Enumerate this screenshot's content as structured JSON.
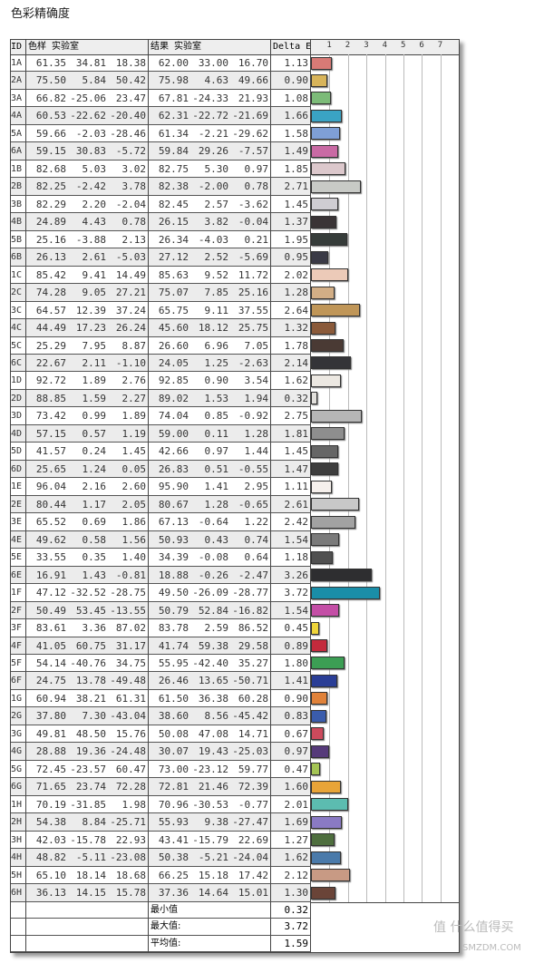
{
  "title": "色彩精确度",
  "header": {
    "id": "ID",
    "sample": "色样 实验室",
    "result": "结果 实验室",
    "delta": "Delta E",
    "ticks": [
      "1",
      "2",
      "3",
      "4",
      "5",
      "6",
      "7"
    ]
  },
  "rows": [
    [
      "1A",
      "61.35",
      "34.81",
      "18.38",
      "62.00",
      "33.00",
      "16.70",
      "1.13",
      "#d87a76"
    ],
    [
      "2A",
      "75.50",
      "5.84",
      "50.42",
      "75.98",
      "4.63",
      "49.66",
      "0.90",
      "#d8b45a"
    ],
    [
      "3A",
      "66.82",
      "-25.06",
      "23.47",
      "67.81",
      "-24.33",
      "21.93",
      "1.08",
      "#7cbb78"
    ],
    [
      "4A",
      "60.53",
      "-22.62",
      "-20.40",
      "62.31",
      "-22.72",
      "-21.69",
      "1.66",
      "#3aa3c4"
    ],
    [
      "5A",
      "59.66",
      "-2.03",
      "-28.46",
      "61.34",
      "-2.21",
      "-29.62",
      "1.58",
      "#7f9fd6"
    ],
    [
      "6A",
      "59.15",
      "30.83",
      "-5.72",
      "59.84",
      "29.26",
      "-7.57",
      "1.49",
      "#c96aa4"
    ],
    [
      "1B",
      "82.68",
      "5.03",
      "3.02",
      "82.75",
      "5.30",
      "0.97",
      "1.85",
      "#dcc8cc"
    ],
    [
      "2B",
      "82.25",
      "-2.42",
      "3.78",
      "82.38",
      "-2.00",
      "0.78",
      "2.71",
      "#c8cac6"
    ],
    [
      "3B",
      "82.29",
      "2.20",
      "-2.04",
      "82.45",
      "2.57",
      "-3.62",
      "1.45",
      "#cfcdd2"
    ],
    [
      "4B",
      "24.89",
      "4.43",
      "0.78",
      "26.15",
      "3.82",
      "-0.04",
      "1.37",
      "#3a3436"
    ],
    [
      "5B",
      "25.16",
      "-3.88",
      "2.13",
      "26.34",
      "-4.03",
      "0.21",
      "1.95",
      "#363c3a"
    ],
    [
      "6B",
      "26.13",
      "2.61",
      "-5.03",
      "27.12",
      "2.52",
      "-5.69",
      "0.95",
      "#3a3a46"
    ],
    [
      "1C",
      "85.42",
      "9.41",
      "14.49",
      "85.63",
      "9.52",
      "11.72",
      "2.02",
      "#eccab8"
    ],
    [
      "2C",
      "74.28",
      "9.05",
      "27.21",
      "75.07",
      "7.85",
      "25.16",
      "1.28",
      "#d2ae86"
    ],
    [
      "3C",
      "64.57",
      "12.39",
      "37.24",
      "65.75",
      "9.11",
      "37.55",
      "2.64",
      "#c09658"
    ],
    [
      "4C",
      "44.49",
      "17.23",
      "26.24",
      "45.60",
      "18.12",
      "25.75",
      "1.32",
      "#8a5a3a"
    ],
    [
      "5C",
      "25.29",
      "7.95",
      "8.87",
      "26.60",
      "6.96",
      "7.05",
      "1.78",
      "#4a3a34"
    ],
    [
      "6C",
      "22.67",
      "2.11",
      "-1.10",
      "24.05",
      "1.25",
      "-2.63",
      "2.14",
      "#343438"
    ],
    [
      "1D",
      "92.72",
      "1.89",
      "2.76",
      "92.85",
      "0.90",
      "3.54",
      "1.62",
      "#ece8e2"
    ],
    [
      "2D",
      "88.85",
      "1.59",
      "2.27",
      "89.02",
      "1.53",
      "1.94",
      "0.32",
      "#e2e0dc"
    ],
    [
      "3D",
      "73.42",
      "0.99",
      "1.89",
      "74.04",
      "0.85",
      "-0.92",
      "2.75",
      "#b6b6b6"
    ],
    [
      "4D",
      "57.15",
      "0.57",
      "1.19",
      "59.00",
      "0.11",
      "1.28",
      "1.81",
      "#8e8e8e"
    ],
    [
      "5D",
      "41.57",
      "0.24",
      "1.45",
      "42.66",
      "0.97",
      "1.44",
      "1.45",
      "#666666"
    ],
    [
      "6D",
      "25.65",
      "1.24",
      "0.05",
      "26.83",
      "0.51",
      "-0.55",
      "1.47",
      "#3e3e3e"
    ],
    [
      "1E",
      "96.04",
      "2.16",
      "2.60",
      "95.90",
      "1.41",
      "2.95",
      "1.11",
      "#f6f0ec"
    ],
    [
      "2E",
      "80.44",
      "1.17",
      "2.05",
      "80.67",
      "1.28",
      "-0.65",
      "2.61",
      "#c8c8c8"
    ],
    [
      "3E",
      "65.52",
      "0.69",
      "1.86",
      "67.13",
      "-0.64",
      "1.22",
      "2.42",
      "#a2a2a2"
    ],
    [
      "4E",
      "49.62",
      "0.58",
      "1.56",
      "50.93",
      "0.43",
      "0.74",
      "1.54",
      "#7a7a7a"
    ],
    [
      "5E",
      "33.55",
      "0.35",
      "1.40",
      "34.39",
      "-0.08",
      "0.64",
      "1.18",
      "#505050"
    ],
    [
      "6E",
      "16.91",
      "1.43",
      "-0.81",
      "18.88",
      "-0.26",
      "-2.47",
      "3.26",
      "#2e2e30"
    ],
    [
      "1F",
      "47.12",
      "-32.52",
      "-28.75",
      "49.50",
      "-26.09",
      "-28.77",
      "3.72",
      "#1a8ea8"
    ],
    [
      "2F",
      "50.49",
      "53.45",
      "-13.55",
      "50.79",
      "52.84",
      "-16.82",
      "1.54",
      "#c44ea6"
    ],
    [
      "3F",
      "83.61",
      "3.36",
      "87.02",
      "83.78",
      "2.59",
      "86.52",
      "0.45",
      "#eed43a"
    ],
    [
      "4F",
      "41.05",
      "60.75",
      "31.17",
      "41.74",
      "59.38",
      "29.58",
      "0.89",
      "#c42a3c"
    ],
    [
      "5F",
      "54.14",
      "-40.76",
      "34.75",
      "55.95",
      "-42.40",
      "35.27",
      "1.80",
      "#3c9e54"
    ],
    [
      "6F",
      "24.75",
      "13.78",
      "-49.48",
      "26.46",
      "13.65",
      "-50.71",
      "1.41",
      "#2a3e96"
    ],
    [
      "1G",
      "60.94",
      "38.21",
      "61.31",
      "61.50",
      "36.38",
      "60.28",
      "0.90",
      "#e0823a"
    ],
    [
      "2G",
      "37.80",
      "7.30",
      "-43.04",
      "38.60",
      "8.56",
      "-45.42",
      "0.83",
      "#3a5cac"
    ],
    [
      "3G",
      "49.81",
      "48.50",
      "15.76",
      "50.08",
      "47.08",
      "14.71",
      "0.67",
      "#cc4a5c"
    ],
    [
      "4G",
      "28.88",
      "19.36",
      "-24.48",
      "30.07",
      "19.43",
      "-25.03",
      "0.97",
      "#563a7a"
    ],
    [
      "5G",
      "72.45",
      "-23.57",
      "60.47",
      "73.00",
      "-23.12",
      "59.77",
      "0.47",
      "#a4c454"
    ],
    [
      "6G",
      "71.65",
      "23.74",
      "72.28",
      "72.81",
      "21.46",
      "72.39",
      "1.60",
      "#e8a438"
    ],
    [
      "1H",
      "70.19",
      "-31.85",
      "1.98",
      "70.96",
      "-30.53",
      "-0.77",
      "2.01",
      "#5cbcb0"
    ],
    [
      "2H",
      "54.38",
      "8.84",
      "-25.71",
      "55.93",
      "9.38",
      "-27.47",
      "1.69",
      "#8a7ac4"
    ],
    [
      "3H",
      "42.03",
      "-15.78",
      "22.93",
      "43.41",
      "-15.79",
      "22.69",
      "1.27",
      "#4e6e3e"
    ],
    [
      "4H",
      "48.82",
      "-5.11",
      "-23.08",
      "50.38",
      "-5.21",
      "-24.04",
      "1.62",
      "#4a7aaa"
    ],
    [
      "5H",
      "65.10",
      "18.14",
      "18.68",
      "66.25",
      "15.18",
      "17.42",
      "2.12",
      "#c89a84"
    ],
    [
      "6H",
      "36.13",
      "14.15",
      "15.78",
      "37.36",
      "14.64",
      "15.01",
      "1.30",
      "#6a4438"
    ]
  ],
  "summary": [
    {
      "label": "最小值",
      "value": "0.32"
    },
    {
      "label": "最大值:",
      "value": "3.72"
    },
    {
      "label": "平均值:",
      "value": "1.59"
    }
  ],
  "watermark": {
    "text": "值 什么值得买",
    "sub": "SMZDM.COM"
  }
}
